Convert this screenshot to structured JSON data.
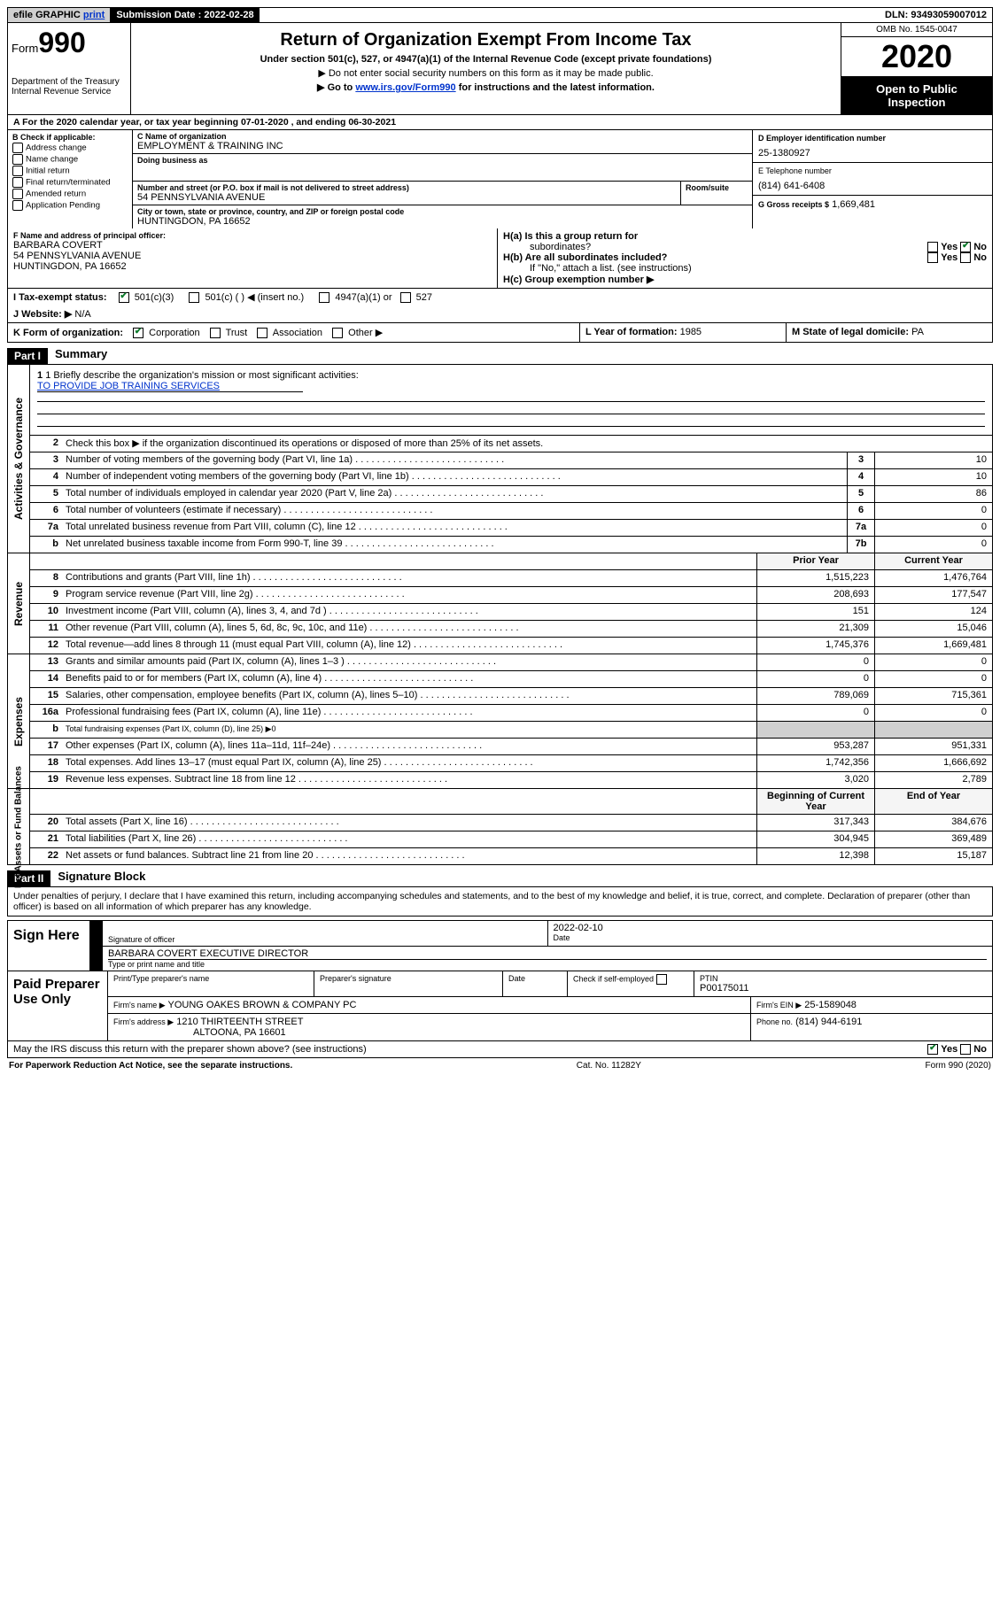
{
  "colors": {
    "header_black": "#000000",
    "shade_gray": "#d0d0d0",
    "check_green": "#0a7a2a",
    "link_blue": "#0033cc"
  },
  "topbar": {
    "efile": "efile GRAPHIC",
    "print": "print",
    "submission_label": "Submission Date :",
    "submission_value": "2022-02-28",
    "dln_label": "DLN:",
    "dln_value": "93493059007012"
  },
  "header_left": {
    "form": "Form",
    "num": "990",
    "dept": "Department of the Treasury\nInternal Revenue Service"
  },
  "header_center": {
    "title": "Return of Organization Exempt From Income Tax",
    "subtitle": "Under section 501(c), 527, or 4947(a)(1) of the Internal Revenue Code (except private foundations)",
    "line1": "Do not enter social security numbers on this form as it may be made public.",
    "line2_pre": "Go to ",
    "line2_link": "www.irs.gov/Form990",
    "line2_post": " for instructions and the latest information."
  },
  "header_right": {
    "omb": "OMB No. 1545-0047",
    "year": "2020",
    "open1": "Open to Public",
    "open2": "Inspection"
  },
  "row_a": "A For the 2020 calendar year, or tax year beginning 07-01-2020    , and ending 06-30-2021",
  "col_b": {
    "header": "B Check if applicable:",
    "items": [
      "Address change",
      "Name change",
      "Initial return",
      "Final return/terminated",
      "Amended return",
      "Application Pending"
    ]
  },
  "col_c": {
    "name_label": "C Name of organization",
    "name": "EMPLOYMENT & TRAINING INC",
    "dba_label": "Doing business as",
    "addr_label": "Number and street (or P.O. box if mail is not delivered to street address)",
    "addr": "54 PENNSYLVANIA AVENUE",
    "room_label": "Room/suite",
    "city_label": "City or town, state or province, country, and ZIP or foreign postal code",
    "city": "HUNTINGDON, PA  16652"
  },
  "col_d": {
    "ein_label": "D Employer identification number",
    "ein": "25-1380927",
    "tel_label": "E Telephone number",
    "tel": "(814) 641-6408",
    "gross_label": "G Gross receipts $",
    "gross": "1,669,481"
  },
  "row_f": {
    "f_label": "F Name and address of principal officer:",
    "f_name": "BARBARA COVERT",
    "f_addr1": "54 PENNSYLVANIA AVENUE",
    "f_addr2": "HUNTINGDON, PA  16652",
    "ha_label": "H(a)  Is this a group return for",
    "ha_sub": "subordinates?",
    "hb_label": "H(b)  Are all subordinates included?",
    "h_note": "If \"No,\" attach a list. (see instructions)",
    "hc_label": "H(c)  Group exemption number ▶",
    "yes": "Yes",
    "no": "No"
  },
  "row_i": {
    "label": "I  Tax-exempt status:",
    "o1": "501(c)(3)",
    "o2": "501(c) (   ) ◀ (insert no.)",
    "o3": "4947(a)(1) or",
    "o4": "527"
  },
  "row_j": {
    "label": "J  Website: ▶",
    "val": "N/A"
  },
  "row_k": {
    "label": "K Form of organization:",
    "o1": "Corporation",
    "o2": "Trust",
    "o3": "Association",
    "o4": "Other ▶"
  },
  "row_l": {
    "label": "L Year of formation:",
    "val": "1985"
  },
  "row_m": {
    "label": "M State of legal domicile:",
    "val": "PA"
  },
  "part1": {
    "tag": "Part I",
    "title": "Summary",
    "q1_label": "1  Briefly describe the organization's mission or most significant activities:",
    "q1_val": "TO PROVIDE JOB TRAINING SERVICES",
    "q2": "Check this box ▶        if the organization discontinued its operations or disposed of more than 25% of its net assets.",
    "side1": "Activities & Governance",
    "side2": "Revenue",
    "side3": "Expenses",
    "side4": "Net Assets or Fund Balances",
    "col_prior": "Prior Year",
    "col_current": "Current Year",
    "col_begin": "Beginning of Current Year",
    "col_end": "End of Year",
    "lines_gov": [
      {
        "n": "3",
        "label": "Number of voting members of the governing body (Part VI, line 1a)",
        "nc": "3",
        "v": "10"
      },
      {
        "n": "4",
        "label": "Number of independent voting members of the governing body (Part VI, line 1b)",
        "nc": "4",
        "v": "10"
      },
      {
        "n": "5",
        "label": "Total number of individuals employed in calendar year 2020 (Part V, line 2a)",
        "nc": "5",
        "v": "86"
      },
      {
        "n": "6",
        "label": "Total number of volunteers (estimate if necessary)",
        "nc": "6",
        "v": "0"
      },
      {
        "n": "7a",
        "label": "Total unrelated business revenue from Part VIII, column (C), line 12",
        "nc": "7a",
        "v": "0"
      },
      {
        "n": "b",
        "label": "Net unrelated business taxable income from Form 990-T, line 39",
        "nc": "7b",
        "v": "0"
      }
    ],
    "lines_rev": [
      {
        "n": "8",
        "label": "Contributions and grants (Part VIII, line 1h)",
        "p": "1,515,223",
        "c": "1,476,764"
      },
      {
        "n": "9",
        "label": "Program service revenue (Part VIII, line 2g)",
        "p": "208,693",
        "c": "177,547"
      },
      {
        "n": "10",
        "label": "Investment income (Part VIII, column (A), lines 3, 4, and 7d )",
        "p": "151",
        "c": "124"
      },
      {
        "n": "11",
        "label": "Other revenue (Part VIII, column (A), lines 5, 6d, 8c, 9c, 10c, and 11e)",
        "p": "21,309",
        "c": "15,046"
      },
      {
        "n": "12",
        "label": "Total revenue—add lines 8 through 11 (must equal Part VIII, column (A), line 12)",
        "p": "1,745,376",
        "c": "1,669,481"
      }
    ],
    "lines_exp": [
      {
        "n": "13",
        "label": "Grants and similar amounts paid (Part IX, column (A), lines 1–3 )",
        "p": "0",
        "c": "0"
      },
      {
        "n": "14",
        "label": "Benefits paid to or for members (Part IX, column (A), line 4)",
        "p": "0",
        "c": "0"
      },
      {
        "n": "15",
        "label": "Salaries, other compensation, employee benefits (Part IX, column (A), lines 5–10)",
        "p": "789,069",
        "c": "715,361"
      },
      {
        "n": "16a",
        "label": "Professional fundraising fees (Part IX, column (A), line 11e)",
        "p": "0",
        "c": "0"
      },
      {
        "n": "b",
        "label": "Total fundraising expenses (Part IX, column (D), line 25) ▶0",
        "p": "",
        "c": "",
        "shade": true,
        "small": true
      },
      {
        "n": "17",
        "label": "Other expenses (Part IX, column (A), lines 11a–11d, 11f–24e)",
        "p": "953,287",
        "c": "951,331"
      },
      {
        "n": "18",
        "label": "Total expenses. Add lines 13–17 (must equal Part IX, column (A), line 25)",
        "p": "1,742,356",
        "c": "1,666,692"
      },
      {
        "n": "19",
        "label": "Revenue less expenses. Subtract line 18 from line 12",
        "p": "3,020",
        "c": "2,789"
      }
    ],
    "lines_net": [
      {
        "n": "20",
        "label": "Total assets (Part X, line 16)",
        "p": "317,343",
        "c": "384,676"
      },
      {
        "n": "21",
        "label": "Total liabilities (Part X, line 26)",
        "p": "304,945",
        "c": "369,489"
      },
      {
        "n": "22",
        "label": "Net assets or fund balances. Subtract line 21 from line 20",
        "p": "12,398",
        "c": "15,187"
      }
    ]
  },
  "part2": {
    "tag": "Part II",
    "title": "Signature Block",
    "declaration": "Under penalties of perjury, I declare that I have examined this return, including accompanying schedules and statements, and to the best of my knowledge and belief, it is true, correct, and complete. Declaration of preparer (other than officer) is based on all information of which preparer has any knowledge.",
    "sign_here": "Sign Here",
    "sig_officer_lbl": "Signature of officer",
    "date_lbl": "Date",
    "date_val": "2022-02-10",
    "name_title_val": "BARBARA COVERT EXECUTIVE DIRECTOR",
    "name_title_lbl": "Type or print name and title",
    "paid": "Paid Preparer Use Only",
    "prep_name_lbl": "Print/Type preparer's name",
    "prep_sig_lbl": "Preparer's signature",
    "prep_date_lbl": "Date",
    "check_self": "Check        if self-employed",
    "ptin_lbl": "PTIN",
    "ptin_val": "P00175011",
    "firm_name_lbl": "Firm's name    ▶",
    "firm_name": "YOUNG OAKES BROWN & COMPANY PC",
    "firm_ein_lbl": "Firm's EIN ▶",
    "firm_ein": "25-1589048",
    "firm_addr_lbl": "Firm's address ▶",
    "firm_addr1": "1210 THIRTEENTH STREET",
    "firm_addr2": "ALTOONA, PA  16601",
    "phone_lbl": "Phone no.",
    "phone": "(814) 944-6191",
    "discuss": "May the IRS discuss this return with the preparer shown above? (see instructions)",
    "yes": "Yes",
    "no": "No"
  },
  "footer": {
    "left": "For Paperwork Reduction Act Notice, see the separate instructions.",
    "mid": "Cat. No. 11282Y",
    "right": "Form 990 (2020)"
  }
}
